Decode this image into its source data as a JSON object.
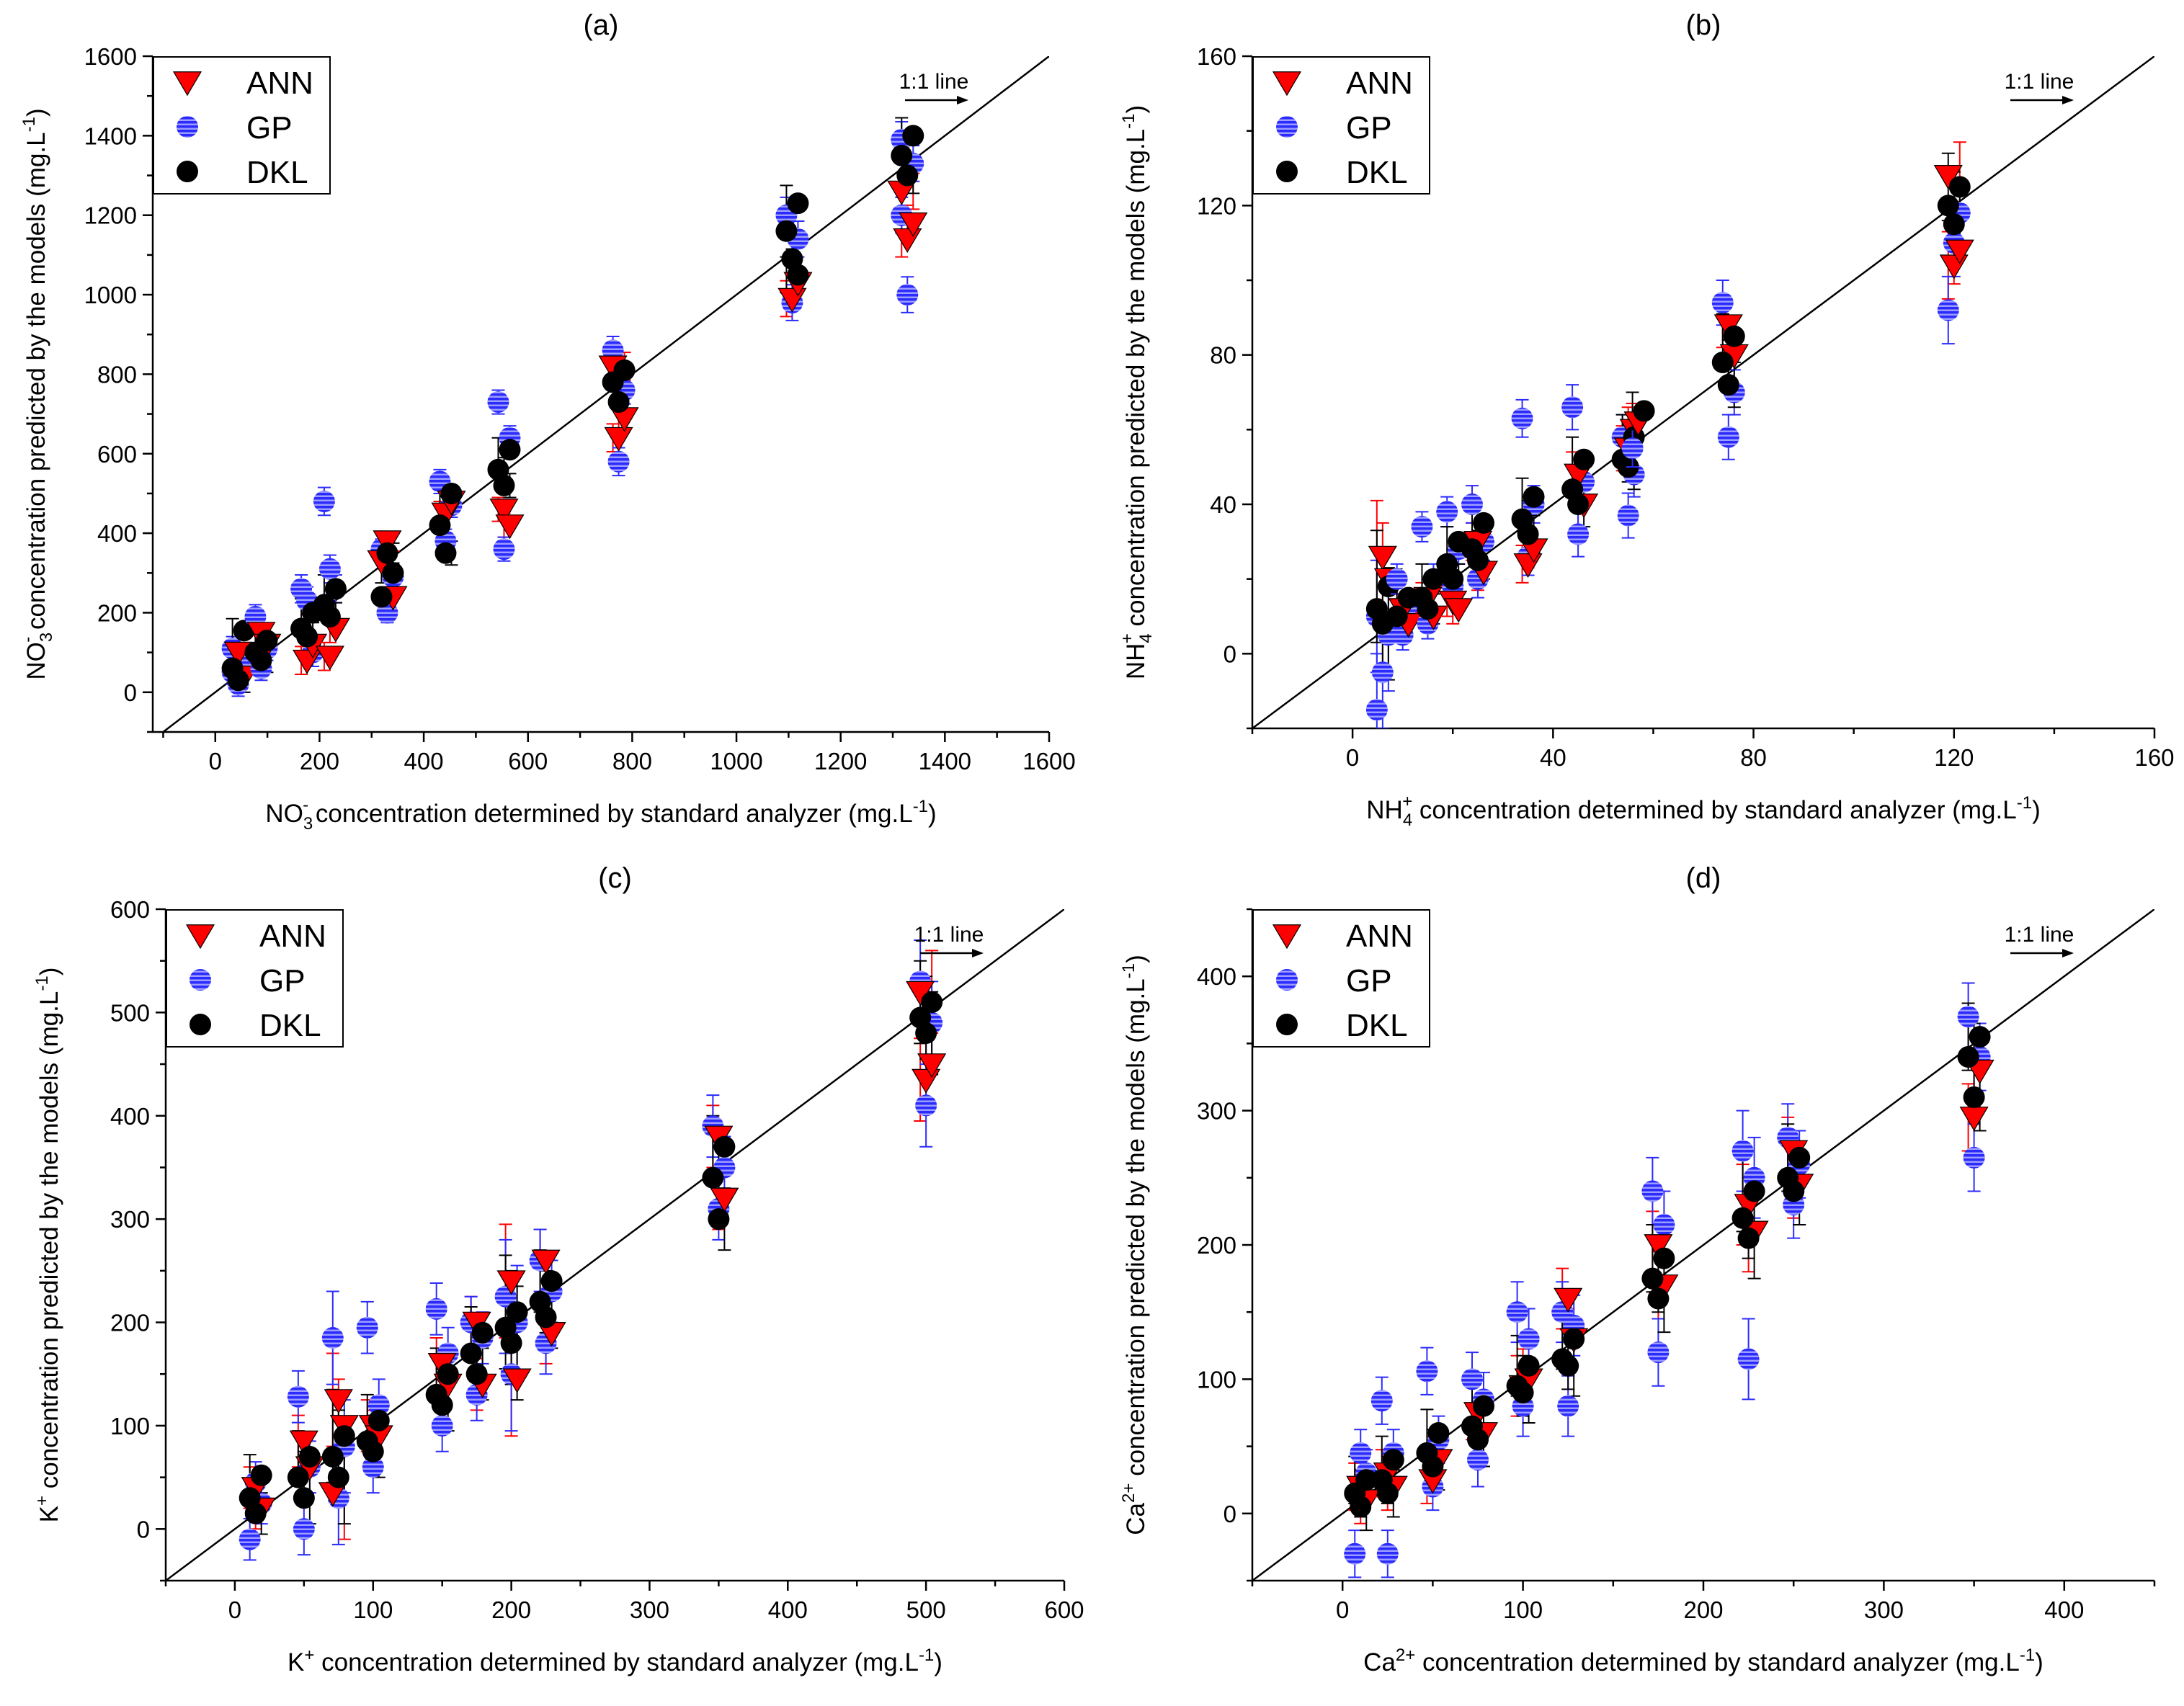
{
  "figure": {
    "colors": {
      "ann": "#ff0000",
      "gp": "#2b2bff",
      "dkl": "#000000",
      "gp_light": "#9d9dff"
    }
  },
  "chart_data": [
    {
      "type": "scatter",
      "panel": "(a)",
      "title": "(a)",
      "xlabel_parts": [
        "NO",
        "3",
        "-",
        " concentration determined by standard analyzer (mg.L",
        "-1",
        ")"
      ],
      "ylabel_parts": [
        "NO",
        "3",
        "-",
        " concentration predicted by the models (mg.L",
        "-1",
        ")"
      ],
      "xlim": [
        -120,
        1600
      ],
      "ylim": [
        -100,
        1600
      ],
      "xticks": [
        0,
        200,
        400,
        600,
        800,
        1000,
        1200,
        1400,
        1600
      ],
      "yticks": [
        0,
        200,
        400,
        600,
        800,
        1000,
        1200,
        1400,
        1600
      ],
      "xtick_labels": [
        "0",
        "200",
        "400",
        "600",
        "800",
        "1000",
        "1200",
        "1400",
        "1600"
      ],
      "ytick_labels": [
        "0",
        "200",
        "400",
        "600",
        "800",
        "1000",
        "1200",
        "1400",
        "1600"
      ],
      "legend": [
        "ANN",
        "GP",
        "DKL"
      ],
      "oneone_label": "1:1 line",
      "clusters": [
        {
          "x": 44,
          "dkl": [
            155,
            60,
            30
          ],
          "ann": [
            100,
            40
          ],
          "gp": [
            110,
            20,
            70,
            50
          ],
          "err": 60
        },
        {
          "x": 88,
          "dkl": [
            130,
            100,
            80
          ],
          "ann": [
            150,
            120
          ],
          "gp": [
            190,
            60,
            110
          ],
          "err": 60
        },
        {
          "x": 176,
          "dkl": [
            200,
            160,
            140
          ],
          "ann": [
            80,
            120
          ],
          "gp": [
            260,
            230,
            100
          ],
          "err": 70
        },
        {
          "x": 220,
          "dkl": [
            260,
            220,
            190
          ],
          "ann": [
            90,
            160
          ],
          "gp": [
            480,
            310,
            260
          ],
          "err": 70
        },
        {
          "x": 330,
          "dkl": [
            300,
            240,
            350
          ],
          "ann": [
            380,
            240,
            330
          ],
          "gp": [
            360,
            200,
            290
          ],
          "err": 50
        },
        {
          "x": 442,
          "dkl": [
            500,
            420,
            350
          ],
          "ann": [
            450,
            480
          ],
          "gp": [
            530,
            380,
            470
          ],
          "err": 60
        },
        {
          "x": 554,
          "dkl": [
            610,
            560,
            520
          ],
          "ann": [
            460,
            420
          ],
          "gp": [
            730,
            360,
            640
          ],
          "err": 60
        },
        {
          "x": 774,
          "dkl": [
            810,
            780,
            730
          ],
          "ann": [
            640,
            690,
            820
          ],
          "gp": [
            860,
            580,
            760
          ],
          "err": 70
        },
        {
          "x": 1107,
          "dkl": [
            1230,
            1160,
            1090,
            1050
          ],
          "ann": [
            990,
            1030
          ],
          "gp": [
            1200,
            980,
            1140
          ],
          "err": 90
        },
        {
          "x": 1328,
          "dkl": [
            1400,
            1350,
            1300
          ],
          "ann": [
            1140,
            1180,
            1260
          ],
          "gp": [
            1390,
            1000,
            1330,
            1200
          ],
          "err": 90
        }
      ]
    },
    {
      "type": "scatter",
      "panel": "(b)",
      "title": "(b)",
      "xlabel_parts": [
        "NH",
        "4",
        "+",
        " concentration determined by standard analyzer (mg.L",
        "-1",
        ")"
      ],
      "ylabel_parts": [
        "NH",
        "4",
        "+",
        " concentration predicted by the models (mg.L",
        "-1",
        ")"
      ],
      "xlim": [
        -20,
        160
      ],
      "ylim": [
        -20,
        160
      ],
      "xticks": [
        0,
        40,
        80,
        120,
        160
      ],
      "yticks": [
        0,
        40,
        80,
        120,
        160
      ],
      "xtick_labels": [
        "0",
        "40",
        "80",
        "120",
        "160"
      ],
      "ytick_labels": [
        "0",
        "40",
        "80",
        "120",
        "160"
      ],
      "legend": [
        "ANN",
        "GP",
        "DKL"
      ],
      "oneone_label": "1:1 line",
      "clusters": [
        {
          "x": 6,
          "dkl": [
            18,
            12,
            8
          ],
          "ann": [
            26,
            20
          ],
          "gp": [
            -15,
            -5,
            5,
            10
          ],
          "err": 30
        },
        {
          "x": 10,
          "dkl": [
            15,
            10
          ],
          "ann": [
            12,
            8
          ],
          "gp": [
            20,
            5,
            12
          ],
          "err": 8
        },
        {
          "x": 15,
          "dkl": [
            20,
            15,
            12
          ],
          "ann": [
            15,
            10
          ],
          "gp": [
            34,
            8,
            20
          ],
          "err": 8
        },
        {
          "x": 20,
          "dkl": [
            30,
            24,
            20
          ],
          "ann": [
            14,
            12
          ],
          "gp": [
            38,
            18,
            28
          ],
          "err": 8
        },
        {
          "x": 25,
          "dkl": [
            35,
            28,
            25
          ],
          "ann": [
            30,
            22
          ],
          "gp": [
            40,
            20,
            30
          ],
          "err": 10
        },
        {
          "x": 35,
          "dkl": [
            42,
            36,
            32
          ],
          "ann": [
            24,
            28
          ],
          "gp": [
            63,
            26,
            40
          ],
          "err": 10
        },
        {
          "x": 45,
          "dkl": [
            52,
            44,
            40
          ],
          "ann": [
            48,
            40
          ],
          "gp": [
            66,
            32,
            46
          ],
          "err": 12
        },
        {
          "x": 55,
          "dkl": [
            58,
            52,
            50
          ],
          "ann": [
            55,
            60
          ],
          "gp": [
            58,
            37,
            48
          ],
          "err": 12
        },
        {
          "x": 57,
          "dkl": [
            65
          ],
          "ann": [
            62
          ],
          "gp": [
            55
          ],
          "err": 10
        },
        {
          "x": 75,
          "dkl": [
            85,
            78,
            72
          ],
          "ann": [
            88,
            80
          ],
          "gp": [
            94,
            58,
            70
          ],
          "err": 12
        },
        {
          "x": 120,
          "dkl": [
            125,
            120,
            115
          ],
          "ann": [
            104,
            108,
            128
          ],
          "gp": [
            92,
            110,
            118
          ],
          "err": 18
        }
      ]
    },
    {
      "type": "scatter",
      "panel": "(c)",
      "title": "(c)",
      "xlabel_parts": [
        "K",
        "",
        "+",
        " concentration determined by standard analyzer (mg.L",
        "-1",
        ")"
      ],
      "ylabel_parts": [
        "K",
        "",
        "+",
        " concentration predicted by the models (mg.L",
        "-1",
        ")"
      ],
      "xlim": [
        -50,
        600
      ],
      "ylim": [
        -50,
        600
      ],
      "xticks": [
        0,
        100,
        200,
        300,
        400,
        500,
        600
      ],
      "yticks": [
        0,
        100,
        200,
        300,
        400,
        500,
        600
      ],
      "xtick_labels": [
        "0",
        "100",
        "200",
        "300",
        "400",
        "500",
        "600"
      ],
      "ytick_labels": [
        "0",
        "100",
        "200",
        "300",
        "400",
        "500",
        "600"
      ],
      "legend": [
        "ANN",
        "GP",
        "DKL"
      ],
      "oneone_label": "1:1 line",
      "clusters": [
        {
          "x": 15,
          "dkl": [
            52,
            30,
            15
          ],
          "ann": [
            40,
            20
          ],
          "gp": [
            -10,
            45,
            25
          ],
          "err": 40
        },
        {
          "x": 50,
          "dkl": [
            70,
            50,
            30
          ],
          "ann": [
            85,
            60
          ],
          "gp": [
            128,
            0,
            60
          ],
          "err": 50
        },
        {
          "x": 75,
          "dkl": [
            90,
            70,
            50
          ],
          "ann": [
            125,
            100,
            35
          ],
          "gp": [
            185,
            30,
            80
          ],
          "err": 90
        },
        {
          "x": 100,
          "dkl": [
            105,
            85,
            75
          ],
          "ann": [
            100,
            90
          ],
          "gp": [
            195,
            60,
            120
          ],
          "err": 50
        },
        {
          "x": 150,
          "dkl": [
            150,
            130,
            120
          ],
          "ann": [
            160,
            140
          ],
          "gp": [
            213,
            100,
            170
          ],
          "err": 50
        },
        {
          "x": 175,
          "dkl": [
            190,
            170,
            150
          ],
          "ann": [
            200,
            140
          ],
          "gp": [
            200,
            130,
            185
          ],
          "err": 50
        },
        {
          "x": 200,
          "dkl": [
            210,
            195,
            180
          ],
          "ann": [
            240,
            145
          ],
          "gp": [
            225,
            150,
            200
          ],
          "err": 110
        },
        {
          "x": 225,
          "dkl": [
            240,
            220,
            205
          ],
          "ann": [
            260,
            190
          ],
          "gp": [
            260,
            180,
            230
          ],
          "err": 60
        },
        {
          "x": 350,
          "dkl": [
            370,
            340,
            300
          ],
          "ann": [
            380,
            320
          ],
          "gp": [
            390,
            310,
            350
          ],
          "err": 60
        },
        {
          "x": 500,
          "dkl": [
            510,
            495,
            480
          ],
          "ann": [
            435,
            450,
            520
          ],
          "gp": [
            530,
            410,
            490
          ],
          "err": 80
        }
      ]
    },
    {
      "type": "scatter",
      "panel": "(d)",
      "title": "(d)",
      "xlabel_parts": [
        "Ca",
        "",
        "2+",
        " concentration determined by standard analyzer (mg.L",
        "-1",
        ")"
      ],
      "ylabel_parts": [
        "Ca",
        "",
        "2+",
        " concentration predicted by the models (mg.L",
        "-1",
        ")"
      ],
      "xlim": [
        -50,
        450
      ],
      "ylim": [
        -50,
        450
      ],
      "xticks": [
        0,
        100,
        200,
        300,
        400
      ],
      "yticks": [
        0,
        100,
        200,
        300,
        400
      ],
      "xtick_labels": [
        "0",
        "100",
        "200",
        "300",
        "400"
      ],
      "ytick_labels": [
        "0",
        "100",
        "200",
        "300",
        "400"
      ],
      "legend": [
        "ANN",
        "GP",
        "DKL"
      ],
      "oneone_label": "1:1 line",
      "clusters": [
        {
          "x": 10,
          "dkl": [
            25,
            15,
            5
          ],
          "ann": [
            20,
            10
          ],
          "gp": [
            -30,
            45,
            30
          ],
          "err": 35
        },
        {
          "x": 25,
          "dkl": [
            40,
            25,
            15
          ],
          "ann": [
            30,
            20
          ],
          "gp": [
            84,
            -30,
            45
          ],
          "err": 35
        },
        {
          "x": 50,
          "dkl": [
            60,
            45,
            35
          ],
          "ann": [
            25,
            40
          ],
          "gp": [
            106,
            20,
            55
          ],
          "err": 35
        },
        {
          "x": 75,
          "dkl": [
            80,
            65,
            55
          ],
          "ann": [
            75,
            60
          ],
          "gp": [
            100,
            40,
            85
          ],
          "err": 40
        },
        {
          "x": 100,
          "dkl": [
            110,
            95,
            90
          ],
          "ann": [
            95,
            100
          ],
          "gp": [
            150,
            80,
            130
          ],
          "err": 45
        },
        {
          "x": 125,
          "dkl": [
            130,
            115,
            110
          ],
          "ann": [
            160,
            130
          ],
          "gp": [
            150,
            80,
            140
          ],
          "err": 45
        },
        {
          "x": 175,
          "dkl": [
            190,
            175,
            160
          ],
          "ann": [
            200,
            170
          ],
          "gp": [
            240,
            120,
            215
          ],
          "err": 50
        },
        {
          "x": 225,
          "dkl": [
            240,
            220,
            205
          ],
          "ann": [
            230,
            210
          ],
          "gp": [
            270,
            115,
            250
          ],
          "err": 60
        },
        {
          "x": 250,
          "dkl": [
            265,
            250,
            240
          ],
          "ann": [
            270,
            245
          ],
          "gp": [
            280,
            230,
            260
          ],
          "err": 50
        },
        {
          "x": 350,
          "dkl": [
            355,
            340,
            310
          ],
          "ann": [
            295,
            330
          ],
          "gp": [
            370,
            265,
            340
          ],
          "err": 50
        }
      ]
    }
  ]
}
